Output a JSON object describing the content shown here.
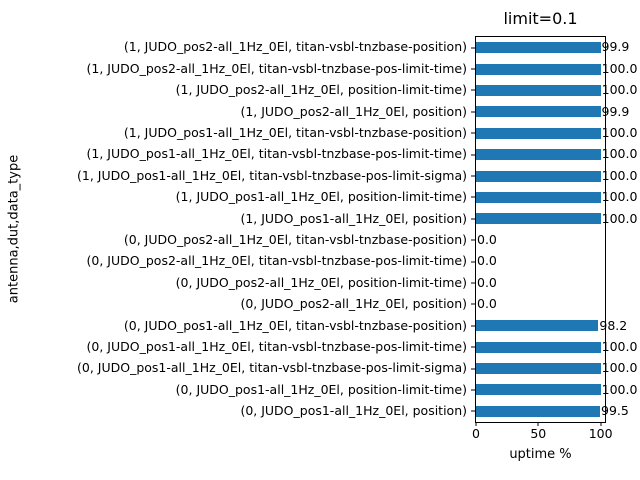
{
  "chart_data": {
    "type": "bar",
    "orientation": "horizontal",
    "title": "limit=0.1",
    "xlabel": "uptime %",
    "ylabel": "antenna,dut,data_type",
    "xlim": [
      0,
      103.5
    ],
    "xticks": [
      0,
      50,
      100
    ],
    "grid": false,
    "legend": false,
    "bar_color": "#1f77b4",
    "value_labels_shown": true,
    "categories": [
      "(1, JUDO_pos2-all_1Hz_0El, titan-vsbl-tnzbase-position)",
      "(1, JUDO_pos2-all_1Hz_0El, titan-vsbl-tnzbase-pos-limit-time)",
      "(1, JUDO_pos2-all_1Hz_0El, position-limit-time)",
      "(1, JUDO_pos2-all_1Hz_0El, position)",
      "(1, JUDO_pos1-all_1Hz_0El, titan-vsbl-tnzbase-position)",
      "(1, JUDO_pos1-all_1Hz_0El, titan-vsbl-tnzbase-pos-limit-time)",
      "(1, JUDO_pos1-all_1Hz_0El, titan-vsbl-tnzbase-pos-limit-sigma)",
      "(1, JUDO_pos1-all_1Hz_0El, position-limit-time)",
      "(1, JUDO_pos1-all_1Hz_0El, position)",
      "(0, JUDO_pos2-all_1Hz_0El, titan-vsbl-tnzbase-position)",
      "(0, JUDO_pos2-all_1Hz_0El, titan-vsbl-tnzbase-pos-limit-time)",
      "(0, JUDO_pos2-all_1Hz_0El, position-limit-time)",
      "(0, JUDO_pos2-all_1Hz_0El, position)",
      "(0, JUDO_pos1-all_1Hz_0El, titan-vsbl-tnzbase-position)",
      "(0, JUDO_pos1-all_1Hz_0El, titan-vsbl-tnzbase-pos-limit-time)",
      "(0, JUDO_pos1-all_1Hz_0El, titan-vsbl-tnzbase-pos-limit-sigma)",
      "(0, JUDO_pos1-all_1Hz_0El, position-limit-time)",
      "(0, JUDO_pos1-all_1Hz_0El, position)"
    ],
    "values": [
      99.9,
      100.0,
      100.0,
      99.9,
      100.0,
      100.0,
      100.0,
      100.0,
      100.0,
      0.0,
      0.0,
      0.0,
      0.0,
      98.2,
      100.0,
      100.0,
      100.0,
      99.5
    ]
  }
}
